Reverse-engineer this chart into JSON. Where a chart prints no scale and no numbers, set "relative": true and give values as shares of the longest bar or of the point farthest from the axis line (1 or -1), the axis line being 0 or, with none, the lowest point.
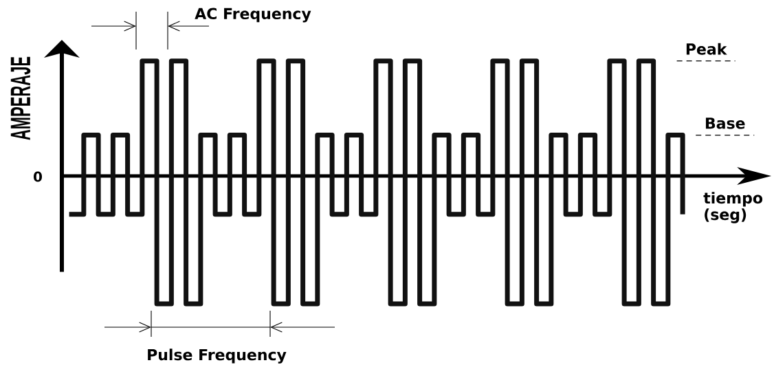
{
  "chart_data": {
    "type": "step",
    "relative": true,
    "ylabel": "AMPERAJE",
    "xlabel": "tiempo (seg)",
    "annotations": [
      "AC Frequency",
      "0",
      "Pulse Frequency"
    ],
    "categories": [
      null,
      null,
      null,
      null,
      null,
      null,
      null,
      null,
      null,
      null,
      null,
      null,
      null,
      null,
      null,
      null,
      null,
      null,
      null,
      null,
      null,
      null,
      null,
      null,
      null,
      null,
      null,
      null,
      null,
      null,
      null,
      null,
      null,
      null,
      null,
      null,
      null,
      null,
      null,
      null,
      null,
      null,
      null
    ],
    "values": [
      -0.3,
      0.32,
      -0.3,
      0.32,
      -0.3,
      0.9,
      -1,
      0.9,
      -1,
      0.32,
      -0.3,
      0.32,
      -0.3,
      0.9,
      -1,
      0.9,
      -1,
      0.32,
      -0.3,
      0.32,
      -0.3,
      0.9,
      -1,
      0.9,
      -1,
      0.32,
      -0.3,
      0.32,
      -0.3,
      0.9,
      -1,
      0.9,
      -1,
      0.32,
      -0.3,
      0.32,
      -0.3,
      0.9,
      -1,
      0.9,
      -1,
      0.32,
      -0.3
    ],
    "color": "#111111",
    "ref_lines": [
      {
        "axis": "y",
        "value": 0.9,
        "label": "Peak",
        "line_style": "dashed"
      },
      {
        "axis": "y",
        "value": 0.32,
        "label": "Base",
        "line_style": "dashed"
      }
    ],
    "tick_labels": false
  }
}
